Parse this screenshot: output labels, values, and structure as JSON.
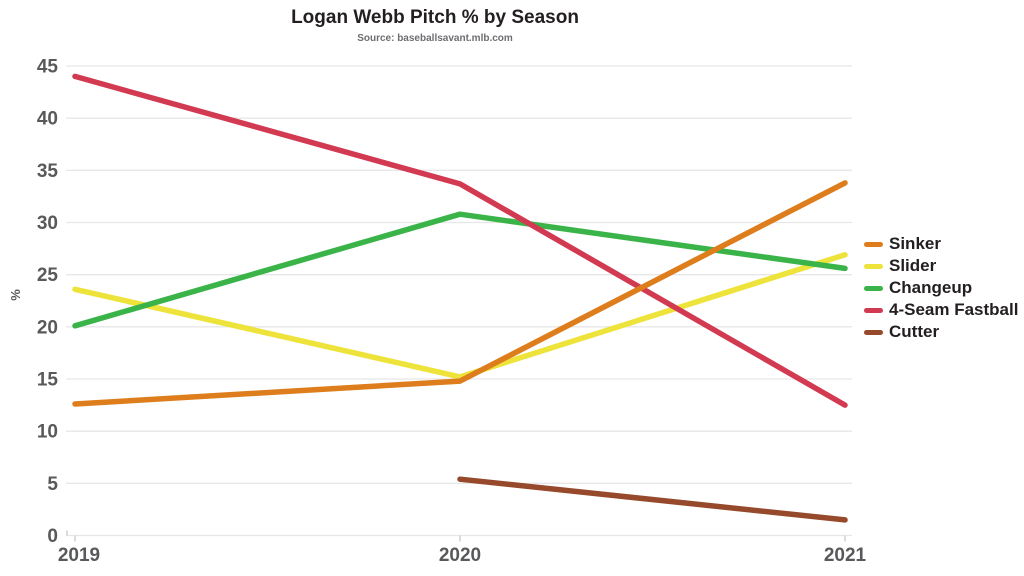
{
  "chart_data": {
    "type": "line",
    "title": "Logan Webb Pitch % by Season",
    "subtitle": "Source: baseballsavant.mlb.com",
    "ylabel": "%",
    "x": [
      "2019",
      "2020",
      "2021"
    ],
    "ylim": [
      0,
      45
    ],
    "ytick_step": 5,
    "ytick_labels": [
      "0",
      "5",
      "10",
      "15",
      "20",
      "25",
      "30",
      "35",
      "40",
      "45"
    ],
    "grid": true,
    "legend_position": "right",
    "series": [
      {
        "name": "Sinker",
        "color": "#DD7D1C",
        "values": [
          12.6,
          14.8,
          33.8
        ]
      },
      {
        "name": "Slider",
        "color": "#EDE33B",
        "values": [
          23.6,
          15.2,
          26.9
        ]
      },
      {
        "name": "Changeup",
        "color": "#3AB449",
        "values": [
          20.1,
          30.8,
          25.6
        ]
      },
      {
        "name": "4-Seam Fastball",
        "color": "#D23A52",
        "values": [
          44.0,
          33.7,
          12.5
        ]
      },
      {
        "name": "Cutter",
        "color": "#96492B",
        "values": [
          null,
          5.4,
          1.5
        ]
      }
    ],
    "draw_order": [
      "Cutter",
      "Slider",
      "Changeup",
      "4-Seam Fastball",
      "Sinker"
    ]
  },
  "colors": {
    "background": "#FFFFFF",
    "grid": "#E7E7E7",
    "tick": "#C9C9C9",
    "axis_text": "#58595B",
    "title_text": "#231F20",
    "subtitle_text": "#6D6E71"
  }
}
